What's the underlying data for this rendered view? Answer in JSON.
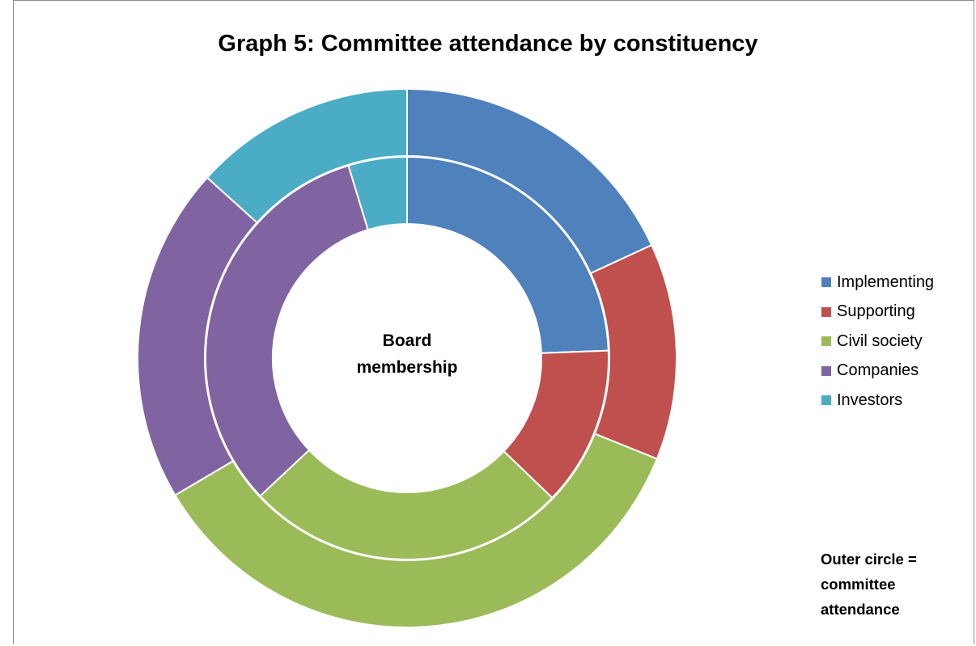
{
  "chart_data": {
    "type": "donut",
    "title": "Graph 5: Committee attendance by constituency",
    "center_label_lines": [
      "Board",
      "membership"
    ],
    "note_lines": [
      "Outer circle =",
      "committee",
      "attendance"
    ],
    "legend_position": "right",
    "categories": [
      "Implementing",
      "Supporting",
      "Civil society",
      "Companies",
      "Investors"
    ],
    "colors": [
      "#4f81bd",
      "#c0504d",
      "#9bbb59",
      "#8064a2",
      "#4bacc6"
    ],
    "series": [
      {
        "ring": "inner",
        "values": [
          24.4,
          12.8,
          25.8,
          32.3,
          4.7
        ]
      },
      {
        "ring": "outer",
        "values": [
          18.1,
          13.0,
          35.4,
          20.2,
          13.3
        ]
      }
    ]
  }
}
